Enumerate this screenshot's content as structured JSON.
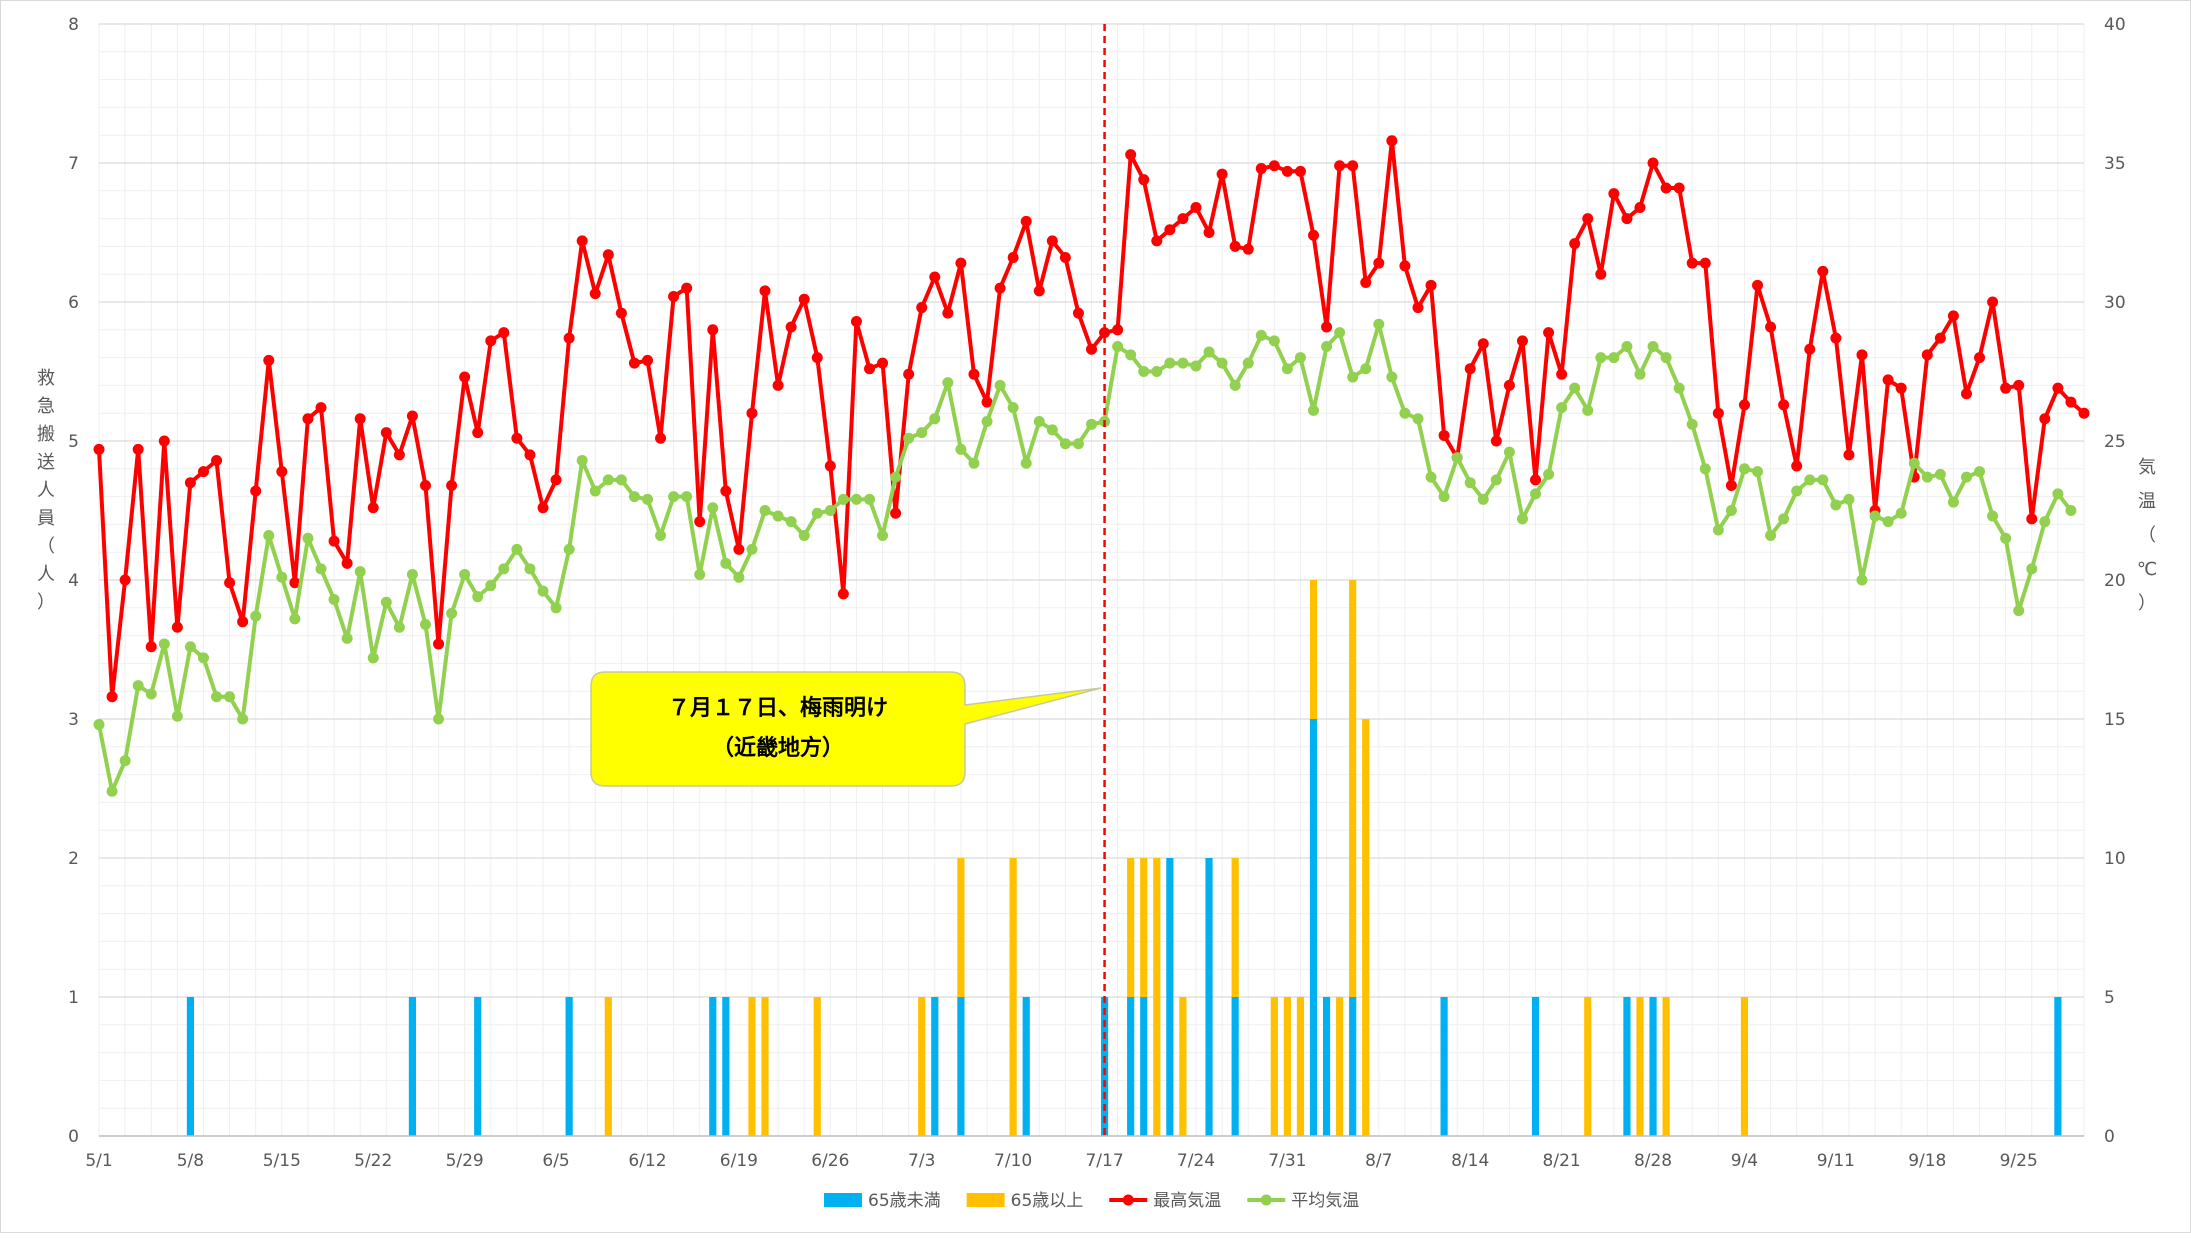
{
  "chart_data": {
    "type": "bar+line",
    "x_start": "5/1",
    "x_tick_labels": [
      "5/1",
      "5/8",
      "5/15",
      "5/22",
      "5/29",
      "6/5",
      "6/12",
      "6/19",
      "6/26",
      "7/3",
      "7/10",
      "7/17",
      "7/24",
      "7/31",
      "8/7",
      "8/14",
      "8/21",
      "8/28",
      "9/4",
      "9/11",
      "9/18",
      "9/25"
    ],
    "y_left": {
      "label": "救急搬送人員（人）",
      "min": 0,
      "max": 8,
      "step": 1
    },
    "y_right": {
      "label": "気温（℃）",
      "min": 0,
      "max": 40,
      "step": 5
    },
    "grid": true,
    "legend_position": "bottom",
    "series": [
      {
        "name": "65歳未満",
        "kind": "bar",
        "axis": "left",
        "stack": "a",
        "color": "#00b0f0",
        "points": [
          [
            7,
            1
          ],
          [
            24,
            1
          ],
          [
            29,
            1
          ],
          [
            36,
            1
          ],
          [
            47,
            1
          ],
          [
            48,
            1
          ],
          [
            64,
            1
          ],
          [
            66,
            1
          ],
          [
            71,
            1
          ],
          [
            77,
            1
          ],
          [
            79,
            1
          ],
          [
            80,
            1
          ],
          [
            82,
            2
          ],
          [
            85,
            2
          ],
          [
            87,
            1
          ],
          [
            93,
            3
          ],
          [
            94,
            1
          ],
          [
            96,
            1
          ],
          [
            103,
            1
          ],
          [
            110,
            1
          ],
          [
            117,
            1
          ],
          [
            119,
            1
          ],
          [
            150,
            1
          ]
        ]
      },
      {
        "name": "65歳以上",
        "kind": "bar",
        "axis": "left",
        "stack": "a",
        "color": "#ffc000",
        "points": [
          [
            39,
            1
          ],
          [
            50,
            1
          ],
          [
            51,
            1
          ],
          [
            55,
            1
          ],
          [
            63,
            1
          ],
          [
            66,
            1
          ],
          [
            70,
            2
          ],
          [
            79,
            1
          ],
          [
            80,
            1
          ],
          [
            81,
            2
          ],
          [
            83,
            1
          ],
          [
            87,
            1
          ],
          [
            90,
            1
          ],
          [
            91,
            1
          ],
          [
            92,
            1
          ],
          [
            93,
            1
          ],
          [
            95,
            1
          ],
          [
            96,
            3
          ],
          [
            97,
            3
          ],
          [
            114,
            1
          ],
          [
            118,
            1
          ],
          [
            120,
            1
          ],
          [
            126,
            1
          ]
        ]
      },
      {
        "name": "最高気温",
        "kind": "line",
        "axis": "right",
        "color": "#ff0000",
        "values": [
          24.7,
          15.8,
          20,
          24.7,
          17.6,
          25,
          18.3,
          23.5,
          23.9,
          24.3,
          19.9,
          18.5,
          23.2,
          27.9,
          23.9,
          19.9,
          25.8,
          26.2,
          21.4,
          20.6,
          25.8,
          22.6,
          25.3,
          24.5,
          25.9,
          23.4,
          17.7,
          23.4,
          27.3,
          25.3,
          28.6,
          28.9,
          25.1,
          24.5,
          22.6,
          23.6,
          28.7,
          32.2,
          30.3,
          31.7,
          29.6,
          27.8,
          27.9,
          25.1,
          30.2,
          30.5,
          22.1,
          29,
          23.2,
          21.1,
          26,
          30.4,
          27,
          29.1,
          30.1,
          28,
          24.1,
          19.5,
          29.3,
          27.6,
          27.8,
          22.4,
          27.4,
          29.8,
          30.9,
          29.6,
          31.4,
          27.4,
          26.4,
          30.5,
          31.6,
          32.9,
          30.4,
          32.2,
          31.6,
          29.6,
          28.3,
          28.9,
          29,
          35.3,
          34.4,
          32.2,
          32.6,
          33,
          33.4,
          32.5,
          34.6,
          32,
          31.9,
          34.8,
          34.9,
          34.7,
          34.7,
          32.4,
          29.1,
          34.9,
          34.9,
          30.7,
          31.4,
          35.8,
          31.3,
          29.8,
          30.6,
          25.2,
          24.4,
          27.6,
          28.5,
          25,
          27,
          28.6,
          23.6,
          28.9,
          27.4,
          32.1,
          33,
          31,
          33.9,
          33,
          33.4,
          35,
          34.1,
          34.1,
          31.4,
          31.4,
          26,
          23.4,
          26.3,
          30.6,
          29.1,
          26.3,
          24.1,
          28.3,
          31.1,
          28.7,
          24.5,
          28.1,
          22.5,
          27.2,
          26.9,
          23.7,
          28.1,
          28.7,
          29.5,
          26.7,
          28,
          30,
          26.9,
          27,
          22.2,
          25.8,
          26.9,
          26.4,
          26
        ]
      },
      {
        "name": "平均気温",
        "kind": "line",
        "axis": "right",
        "color": "#92d050",
        "values": [
          14.8,
          12.4,
          13.5,
          16.2,
          15.9,
          17.7,
          15.1,
          17.6,
          17.2,
          15.8,
          15.8,
          15,
          18.7,
          21.6,
          20.1,
          18.6,
          21.5,
          20.4,
          19.3,
          17.9,
          20.3,
          17.2,
          19.2,
          18.3,
          20.2,
          18.4,
          15,
          18.8,
          20.2,
          19.4,
          19.8,
          20.4,
          21.1,
          20.4,
          19.6,
          19,
          21.1,
          24.3,
          23.2,
          23.6,
          23.6,
          23,
          22.9,
          21.6,
          23,
          23,
          20.2,
          22.6,
          20.6,
          20.1,
          21.1,
          22.5,
          22.3,
          22.1,
          21.6,
          22.4,
          22.5,
          22.9,
          22.9,
          22.9,
          21.6,
          23.7,
          25.1,
          25.3,
          25.8,
          27.1,
          24.7,
          24.2,
          25.7,
          27,
          26.2,
          24.2,
          25.7,
          25.4,
          24.9,
          24.9,
          25.6,
          25.7,
          28.4,
          28.1,
          27.5,
          27.5,
          27.8,
          27.8,
          27.7,
          28.2,
          27.8,
          27,
          27.8,
          28.8,
          28.6,
          27.6,
          28,
          26.1,
          28.4,
          28.9,
          27.3,
          27.6,
          29.2,
          27.3,
          26,
          25.8,
          23.7,
          23,
          24.4,
          23.5,
          22.9,
          23.6,
          24.6,
          22.2,
          23.1,
          23.8,
          26.2,
          26.9,
          26.1,
          28,
          28,
          28.4,
          27.4,
          28.4,
          28,
          26.9,
          25.6,
          24,
          21.8,
          22.5,
          24,
          23.9,
          21.6,
          22.2,
          23.2,
          23.6,
          23.6,
          22.7,
          22.9,
          20,
          22.3,
          22.1,
          22.4,
          24.2,
          23.7,
          23.8,
          22.8,
          23.7,
          23.9,
          22.3,
          21.5,
          18.9,
          20.4,
          22.1,
          23.1,
          22.5
        ]
      }
    ],
    "reference_line": {
      "x_label": "7/17",
      "color": "#ff0000",
      "style": "dashed"
    },
    "annotation": {
      "text_line1": "７月１７日、梅雨明け",
      "text_line2": "（近畿地方）",
      "color": "#ffff00"
    }
  }
}
